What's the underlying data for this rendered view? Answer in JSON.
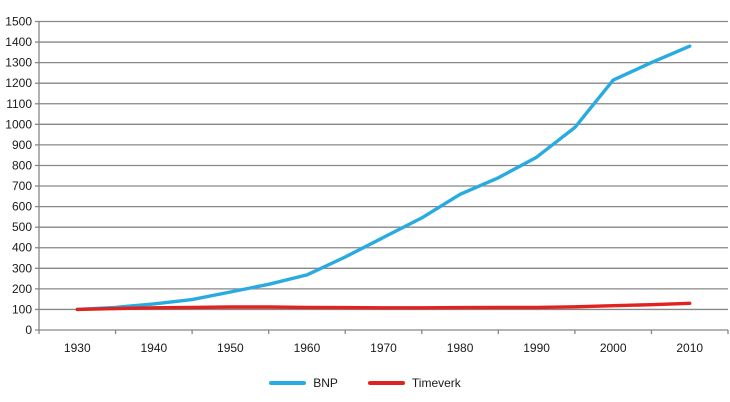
{
  "chart_data": {
    "type": "line",
    "title": "",
    "xlabel": "",
    "ylabel": "",
    "ylim": [
      0,
      1500
    ],
    "y_ticks": [
      0,
      100,
      200,
      300,
      400,
      500,
      600,
      700,
      800,
      900,
      1000,
      1100,
      1200,
      1300,
      1400,
      1500
    ],
    "x_ticks": [
      "1930",
      "1940",
      "1950",
      "1960",
      "1970",
      "1980",
      "1990",
      "2000",
      "2010"
    ],
    "x": [
      1930,
      1935,
      1940,
      1945,
      1950,
      1955,
      1960,
      1965,
      1970,
      1975,
      1980,
      1985,
      1990,
      1995,
      2000,
      2005,
      2010
    ],
    "series": [
      {
        "name": "BNP",
        "color": "#29ABE2",
        "values": [
          100,
          110,
          127,
          148,
          185,
          222,
          268,
          355,
          450,
          545,
          660,
          740,
          840,
          985,
          1215,
          1300,
          1380
        ]
      },
      {
        "name": "Timeverk",
        "color": "#E0231E",
        "values": [
          100,
          104,
          108,
          110,
          112,
          112,
          110,
          109,
          108,
          108,
          109,
          110,
          110,
          113,
          118,
          123,
          130
        ]
      }
    ],
    "grid": "horizontal",
    "legend_position": "bottom-center"
  },
  "styles": {
    "background": "#FFFFFF",
    "grid_color": "#878787",
    "axis_color": "#878787",
    "text_color": "#1A1A1A"
  }
}
